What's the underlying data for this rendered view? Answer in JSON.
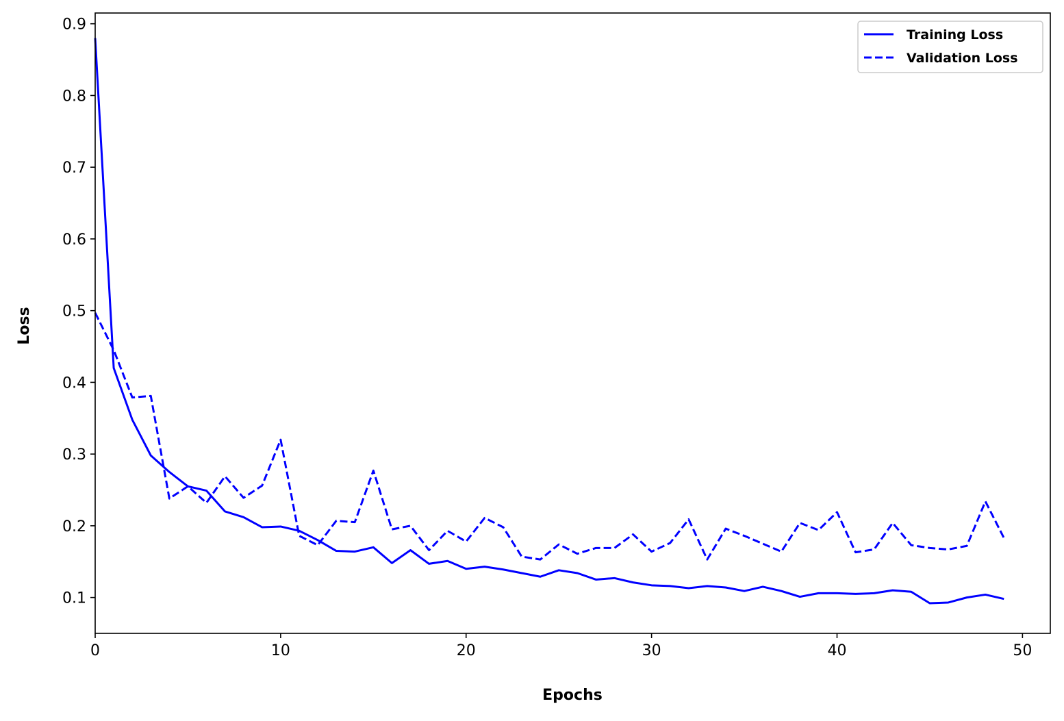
{
  "chart_data": {
    "type": "line",
    "title": "",
    "xlabel": "Epochs",
    "ylabel": "Loss",
    "xlim": [
      0,
      51.5
    ],
    "ylim": [
      0.05,
      0.915
    ],
    "xticks": [
      0,
      10,
      20,
      30,
      40,
      50
    ],
    "xtick_labels": [
      "0",
      "10",
      "20",
      "30",
      "40",
      "50"
    ],
    "yticks": [
      0.1,
      0.2,
      0.3,
      0.4,
      0.5,
      0.6,
      0.7,
      0.8,
      0.9
    ],
    "ytick_labels": [
      "0.1",
      "0.2",
      "0.3",
      "0.4",
      "0.5",
      "0.6",
      "0.7",
      "0.8",
      "0.9"
    ],
    "grid": false,
    "legend_position": "top-right",
    "x": [
      0,
      1,
      2,
      3,
      4,
      5,
      6,
      7,
      8,
      9,
      10,
      11,
      12,
      13,
      14,
      15,
      16,
      17,
      18,
      19,
      20,
      21,
      22,
      23,
      24,
      25,
      26,
      27,
      28,
      29,
      30,
      31,
      32,
      33,
      34,
      35,
      36,
      37,
      38,
      39,
      40,
      41,
      42,
      43,
      44,
      45,
      46,
      47,
      48,
      49
    ],
    "series": [
      {
        "name": "Training Loss",
        "color": "#0000ff",
        "style": "solid",
        "values": [
          0.88,
          0.42,
          0.348,
          0.298,
          0.275,
          0.255,
          0.249,
          0.22,
          0.212,
          0.198,
          0.199,
          0.193,
          0.18,
          0.165,
          0.164,
          0.17,
          0.148,
          0.166,
          0.147,
          0.151,
          0.14,
          0.143,
          0.139,
          0.134,
          0.129,
          0.138,
          0.134,
          0.125,
          0.127,
          0.121,
          0.117,
          0.116,
          0.113,
          0.116,
          0.114,
          0.109,
          0.115,
          0.109,
          0.101,
          0.106,
          0.106,
          0.105,
          0.106,
          0.11,
          0.108,
          0.092,
          0.093,
          0.1,
          0.104,
          0.098
        ]
      },
      {
        "name": "Validation Loss",
        "color": "#0000ff",
        "style": "dashed",
        "values": [
          0.497,
          0.445,
          0.379,
          0.381,
          0.238,
          0.255,
          0.232,
          0.269,
          0.239,
          0.256,
          0.32,
          0.186,
          0.173,
          0.207,
          0.205,
          0.277,
          0.195,
          0.2,
          0.166,
          0.193,
          0.178,
          0.211,
          0.198,
          0.157,
          0.153,
          0.174,
          0.161,
          0.169,
          0.169,
          0.188,
          0.164,
          0.176,
          0.209,
          0.153,
          0.196,
          0.186,
          0.175,
          0.164,
          0.204,
          0.194,
          0.219,
          0.163,
          0.167,
          0.204,
          0.173,
          0.169,
          0.167,
          0.172,
          0.234,
          0.183
        ]
      }
    ]
  }
}
